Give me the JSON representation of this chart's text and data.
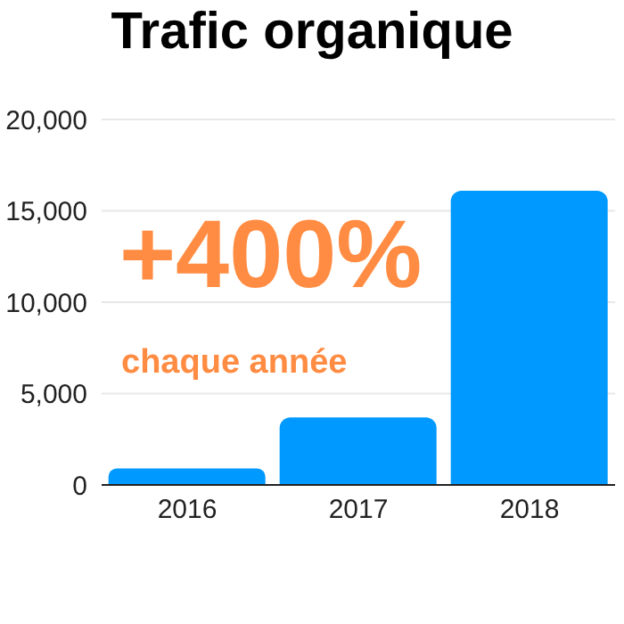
{
  "chart_data": {
    "type": "bar",
    "title": "Trafic organique",
    "categories": [
      "2016",
      "2017",
      "2018"
    ],
    "values": [
      900,
      3700,
      16100
    ],
    "color": "#0099ff",
    "ylim": [
      0,
      20000
    ],
    "yticks": [
      0,
      {
        "value": 5000,
        "label": "5,000"
      },
      {
        "value": 10000,
        "label": "10,000"
      },
      {
        "value": 15000,
        "label": "15,000"
      },
      {
        "value": 20000,
        "label": "20,000"
      }
    ],
    "grid": "y",
    "annotations": [
      "+400%",
      "chaque année"
    ]
  }
}
